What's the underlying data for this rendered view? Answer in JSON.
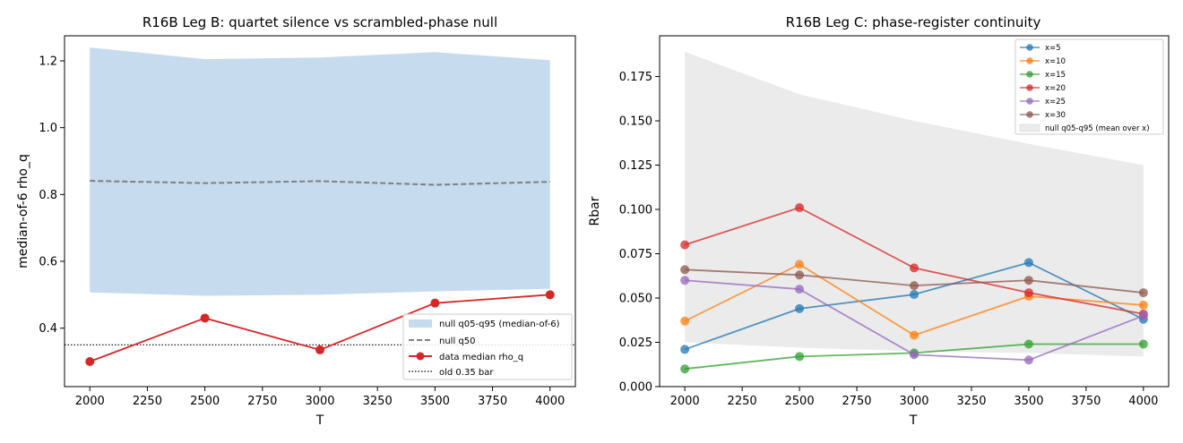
{
  "chart_data": [
    {
      "type": "line",
      "title": "R16B Leg B: quartet silence vs scrambled-phase null",
      "xlabel": "T",
      "ylabel": "median-of-6 rho_q",
      "x": [
        2000,
        2500,
        3000,
        3500,
        4000
      ],
      "xlim": [
        1890,
        4110
      ],
      "ylim": [
        0.225,
        1.275
      ],
      "xticks": [
        2000,
        2250,
        2500,
        2750,
        3000,
        3250,
        3500,
        3750,
        4000
      ],
      "yticks": [
        0.4,
        0.6,
        0.8,
        1.0,
        1.2
      ],
      "ytick_labels": [
        "0.4",
        "0.6",
        "0.8",
        "1.0",
        "1.2"
      ],
      "band": {
        "name": "null q05-q95 (median-of-6)",
        "lower": [
          0.507,
          0.497,
          0.5,
          0.51,
          0.518
        ],
        "upper": [
          1.24,
          1.205,
          1.21,
          1.226,
          1.202
        ],
        "color": "#c6dbee"
      },
      "series": [
        {
          "name": "null q50",
          "values": [
            0.841,
            0.834,
            0.84,
            0.829,
            0.838
          ],
          "color": "#7f7f7f",
          "style": "dashed"
        },
        {
          "name": "data median rho_q",
          "values": [
            0.3,
            0.43,
            0.335,
            0.475,
            0.5
          ],
          "color": "#d62728",
          "style": "solid-markers"
        }
      ],
      "hline": {
        "name": "old 0.35 bar",
        "value": 0.35,
        "color": "#000000",
        "style": "dotted"
      },
      "grid": false,
      "legend_position": "lower-right"
    },
    {
      "type": "line",
      "title": "R16B Leg C: phase-register continuity",
      "xlabel": "T",
      "ylabel": "Rbar",
      "x": [
        2000,
        2500,
        3000,
        3500,
        4000
      ],
      "xlim": [
        1890,
        4110
      ],
      "ylim": [
        0,
        0.198
      ],
      "xticks": [
        2000,
        2250,
        2500,
        2750,
        3000,
        3250,
        3500,
        3750,
        4000
      ],
      "yticks": [
        0,
        0.025,
        0.05,
        0.075,
        0.1,
        0.125,
        0.15,
        0.175
      ],
      "ytick_labels": [
        "0.000",
        "0.025",
        "0.050",
        "0.075",
        "0.100",
        "0.125",
        "0.150",
        "0.175"
      ],
      "band": {
        "name": "null q05-q95 (mean over x)",
        "lower": [
          0.025,
          0.022,
          0.02,
          0.019,
          0.017
        ],
        "upper": [
          0.189,
          0.165,
          0.15,
          0.137,
          0.125
        ],
        "color": "#ebebeb"
      },
      "series": [
        {
          "name": "x=5",
          "values": [
            0.021,
            0.044,
            0.052,
            0.07,
            0.038
          ],
          "color": "#1f77b4"
        },
        {
          "name": "x=10",
          "values": [
            0.037,
            0.069,
            0.029,
            0.051,
            0.046
          ],
          "color": "#ff7f0e"
        },
        {
          "name": "x=15",
          "values": [
            0.01,
            0.017,
            0.019,
            0.024,
            0.024
          ],
          "color": "#2ca02c"
        },
        {
          "name": "x=20",
          "values": [
            0.08,
            0.101,
            0.067,
            0.053,
            0.041
          ],
          "color": "#d62728"
        },
        {
          "name": "x=25",
          "values": [
            0.06,
            0.055,
            0.018,
            0.015,
            0.04
          ],
          "color": "#9467bd"
        },
        {
          "name": "x=30",
          "values": [
            0.066,
            0.063,
            0.057,
            0.06,
            0.053
          ],
          "color": "#8c564b"
        }
      ],
      "grid": false,
      "legend_position": "top-right"
    }
  ]
}
